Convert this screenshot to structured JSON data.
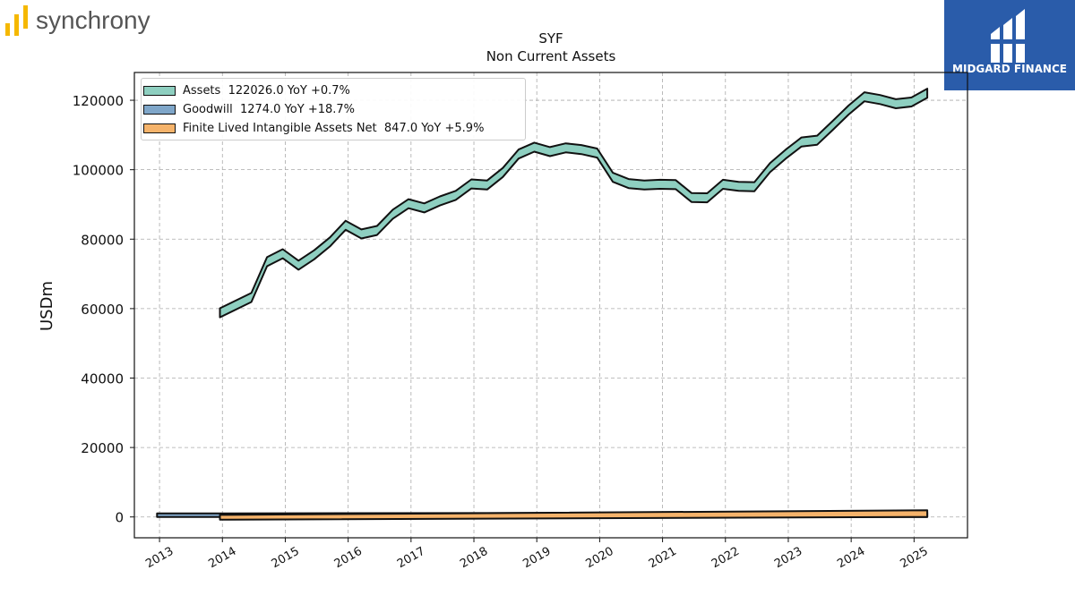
{
  "brand": {
    "left_logo_text": "synchrony",
    "right_logo_text": "MIDGARD FINANCE",
    "right_logo_color": "#2a5caa",
    "left_logo_bar_color": "#f5b800"
  },
  "chart_data": {
    "type": "area",
    "title": "SYF",
    "subtitle": "Non Current  Assets",
    "ylabel": "USDm",
    "xlabel": "",
    "xlim": [
      2012.6,
      2025.85
    ],
    "ylim": [
      -6000,
      128000
    ],
    "yticks": [
      0,
      20000,
      40000,
      60000,
      80000,
      100000,
      120000
    ],
    "xticks": [
      "2013",
      "2014",
      "2015",
      "2016",
      "2017",
      "2018",
      "2019",
      "2020",
      "2021",
      "2022",
      "2023",
      "2024",
      "2025"
    ],
    "grid": true,
    "legend_position": "upper-left",
    "series": [
      {
        "name": "Assets  122026.0 YoY +0.7%",
        "color": "#8ecfc0",
        "x": [
          2013.96,
          2014.46,
          2014.71,
          2014.96,
          2015.21,
          2015.46,
          2015.71,
          2015.96,
          2016.21,
          2016.46,
          2016.71,
          2016.96,
          2017.21,
          2017.46,
          2017.71,
          2017.96,
          2018.21,
          2018.46,
          2018.71,
          2018.96,
          2019.21,
          2019.46,
          2019.71,
          2019.96,
          2020.21,
          2020.46,
          2020.71,
          2020.96,
          2021.21,
          2021.46,
          2021.71,
          2021.96,
          2022.21,
          2022.46,
          2022.71,
          2022.96,
          2023.21,
          2023.46,
          2023.71,
          2023.96,
          2024.21,
          2024.46,
          2024.71,
          2024.96,
          2025.21
        ],
        "values": [
          58800,
          63200,
          73500,
          75800,
          72500,
          75500,
          79200,
          84000,
          81500,
          82500,
          87200,
          90200,
          89000,
          91000,
          92600,
          95900,
          95600,
          99200,
          104500,
          106500,
          105200,
          106300,
          105800,
          104800,
          97800,
          96000,
          95600,
          95800,
          95700,
          92000,
          91900,
          95800,
          95200,
          95100,
          100600,
          104500,
          108000,
          108500,
          112800,
          117200,
          121000,
          120200,
          119000,
          119500,
          122026
        ],
        "band_low_offset": -1300,
        "band_high_offset": 1300
      },
      {
        "name": "Goodwill  1274.0 YoY +18.7%",
        "color": "#7fa6c9",
        "x": [
          2012.96,
          2025.21
        ],
        "values": [
          1274,
          1274
        ],
        "band_low": [
          0,
          0
        ],
        "band_high": [
          1000,
          1274
        ]
      },
      {
        "name": "Finite Lived Intangible Assets Net  847.0 YoY +5.9%",
        "color": "#f5b36b",
        "x": [
          2013.96,
          2025.21
        ],
        "values": [
          847,
          847
        ],
        "band_low": [
          -800,
          0
        ],
        "band_high": [
          600,
          1900
        ]
      }
    ]
  }
}
